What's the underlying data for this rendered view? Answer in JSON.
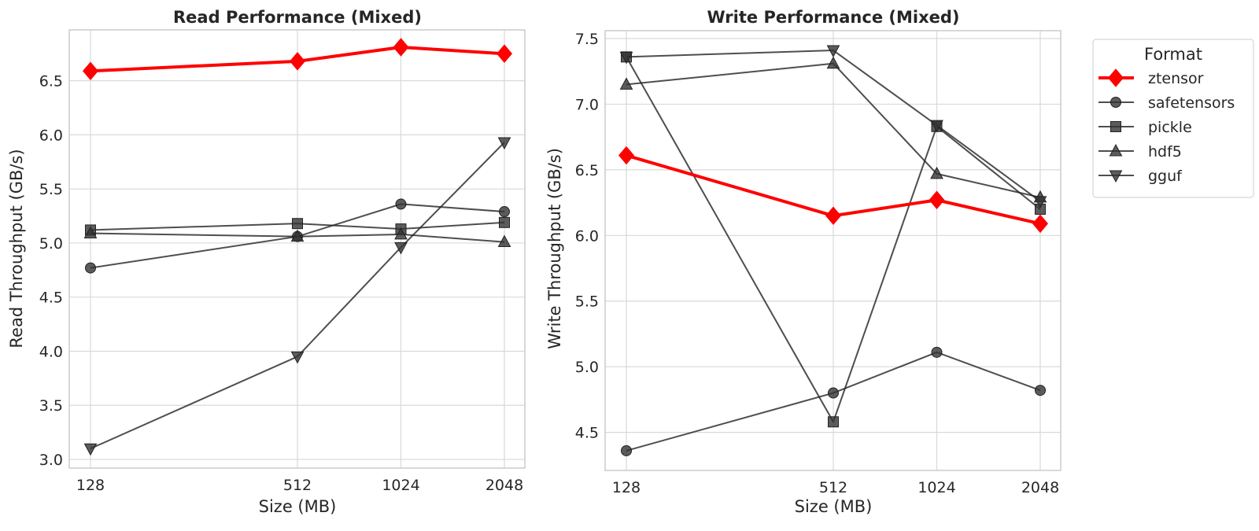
{
  "legend": {
    "title": "Format",
    "entries": [
      {
        "label": "ztensor",
        "marker": "diamond",
        "color": "#ff0000",
        "highlight": true
      },
      {
        "label": "safetensors",
        "marker": "circle",
        "color": "#333333",
        "highlight": false
      },
      {
        "label": "pickle",
        "marker": "square",
        "color": "#333333",
        "highlight": false
      },
      {
        "label": "hdf5",
        "marker": "triangle-up",
        "color": "#333333",
        "highlight": false
      },
      {
        "label": "gguf",
        "marker": "triangle-down",
        "color": "#333333",
        "highlight": false
      }
    ],
    "position": "outside-right-top"
  },
  "chart_data": [
    {
      "type": "line",
      "title": "Read Performance (Mixed)",
      "xlabel": "Size (MB)",
      "ylabel": "Read Throughput (GB/s)",
      "x_scale": "log2",
      "categories": [
        128,
        512,
        1024,
        2048
      ],
      "xtick_labels": [
        "128",
        "512",
        "1024",
        "2048"
      ],
      "ylim": [
        2.92,
        6.97
      ],
      "yticks": [
        3.0,
        3.5,
        4.0,
        4.5,
        5.0,
        5.5,
        6.0,
        6.5
      ],
      "ytick_labels": [
        "3.0",
        "3.5",
        "4.0",
        "4.5",
        "5.0",
        "5.5",
        "6.0",
        "6.5"
      ],
      "grid": true,
      "series": [
        {
          "name": "ztensor",
          "values": [
            6.59,
            6.68,
            6.81,
            6.75
          ]
        },
        {
          "name": "safetensors",
          "values": [
            4.77,
            5.06,
            5.36,
            5.29
          ]
        },
        {
          "name": "pickle",
          "values": [
            5.12,
            5.18,
            5.13,
            5.19
          ]
        },
        {
          "name": "hdf5",
          "values": [
            5.09,
            5.06,
            5.08,
            5.01
          ]
        },
        {
          "name": "gguf",
          "values": [
            3.1,
            3.95,
            4.96,
            5.93
          ]
        }
      ]
    },
    {
      "type": "line",
      "title": "Write Performance (Mixed)",
      "xlabel": "Size (MB)",
      "ylabel": "Write Throughput (GB/s)",
      "x_scale": "log2",
      "categories": [
        128,
        512,
        1024,
        2048
      ],
      "xtick_labels": [
        "128",
        "512",
        "1024",
        "2048"
      ],
      "ylim": [
        4.21,
        7.56
      ],
      "yticks": [
        4.5,
        5.0,
        5.5,
        6.0,
        6.5,
        7.0,
        7.5
      ],
      "ytick_labels": [
        "4.5",
        "5.0",
        "5.5",
        "6.0",
        "6.5",
        "7.0",
        "7.5"
      ],
      "grid": true,
      "series": [
        {
          "name": "ztensor",
          "values": [
            6.61,
            6.15,
            6.27,
            6.09
          ]
        },
        {
          "name": "safetensors",
          "values": [
            4.36,
            4.8,
            5.11,
            4.82
          ]
        },
        {
          "name": "pickle",
          "values": [
            7.36,
            4.58,
            6.83,
            6.2
          ]
        },
        {
          "name": "hdf5",
          "values": [
            7.15,
            7.31,
            6.47,
            6.29
          ]
        },
        {
          "name": "gguf",
          "values": [
            7.36,
            7.41,
            6.84,
            6.26
          ]
        }
      ]
    }
  ]
}
